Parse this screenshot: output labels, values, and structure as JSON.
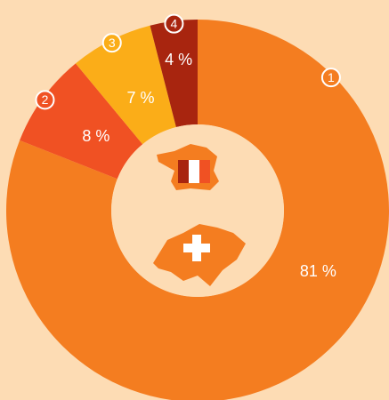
{
  "chart_data": {
    "type": "donut",
    "categories": [
      "1",
      "2",
      "3",
      "4"
    ],
    "values": [
      81,
      8,
      7,
      4
    ],
    "value_labels": [
      "81 %",
      "8 %",
      "7 %",
      "4 %"
    ],
    "colors": [
      "#f47d20",
      "#f05123",
      "#fbad18",
      "#a8250f"
    ]
  }
}
